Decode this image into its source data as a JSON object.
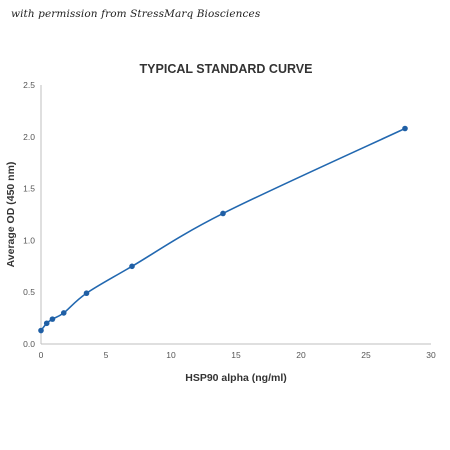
{
  "credit": "with permission from StressMarq Biosciences",
  "chart_data": {
    "type": "line",
    "title": "TYPICAL STANDARD CURVE",
    "xlabel": "HSP90 alpha (ng/ml)",
    "ylabel": "Average OD (450 nm)",
    "xlim": [
      0,
      30
    ],
    "ylim": [
      0,
      2.5
    ],
    "x_ticks": [
      "0",
      "5",
      "10",
      "15",
      "20",
      "25",
      "30"
    ],
    "y_ticks": [
      "0.0",
      "0.5",
      "1.0",
      "1.5",
      "2.0",
      "2.5"
    ],
    "grid": false,
    "legend": "none",
    "series": [
      {
        "x": [
          0,
          0.44,
          0.88,
          1.75,
          3.5,
          7,
          14,
          28
        ],
        "y": [
          0.13,
          0.2,
          0.24,
          0.3,
          0.49,
          0.75,
          1.26,
          2.08
        ]
      }
    ],
    "colors": {
      "line": "#2268b0",
      "marker": "#1f5fa5",
      "axis": "#bfbfbf",
      "text": "#333333"
    }
  }
}
